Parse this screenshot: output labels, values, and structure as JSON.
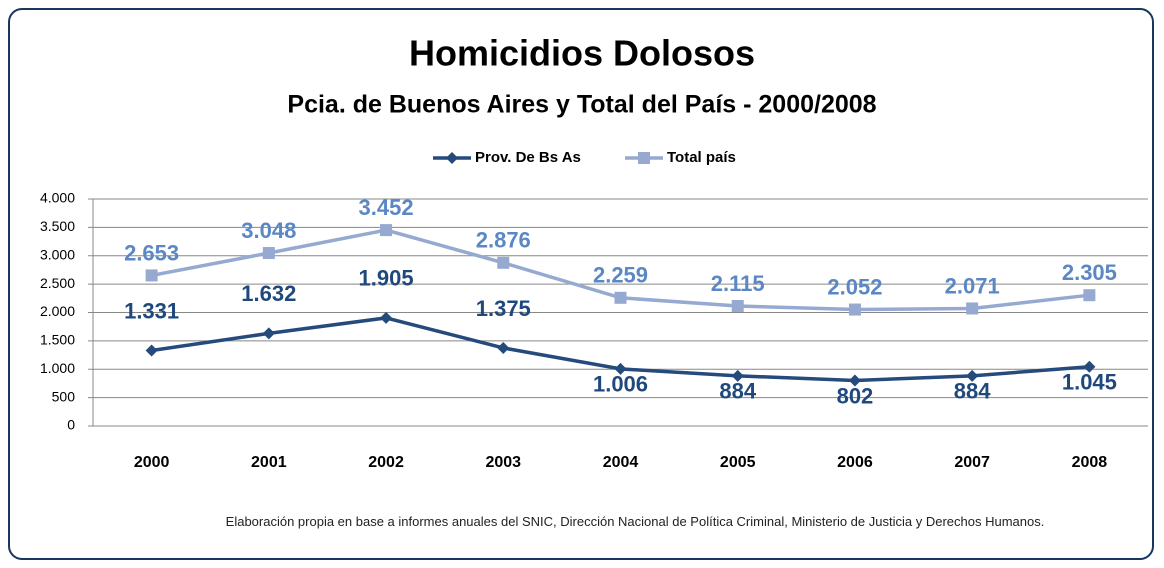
{
  "chart_data": {
    "type": "line",
    "title": "Homicidios Dolosos",
    "subtitle": "Pcia. de Buenos Aires y Total del País - 2000/2008",
    "categories": [
      "2000",
      "2001",
      "2002",
      "2003",
      "2004",
      "2005",
      "2006",
      "2007",
      "2008"
    ],
    "series": [
      {
        "name": "Prov. De Bs As",
        "color": "#254a7c",
        "label_color": "#1f497d",
        "marker": "diamond",
        "values": [
          1331,
          1632,
          1905,
          1375,
          1006,
          884,
          802,
          884,
          1045
        ],
        "value_labels": [
          "1.331",
          "1.632",
          "1.905",
          "1.375",
          "1.006",
          "884",
          "802",
          "884",
          "1.045"
        ]
      },
      {
        "name": "Total país",
        "color": "#95a9d1",
        "label_color": "#5b87c5",
        "marker": "square",
        "values": [
          2653,
          3048,
          3452,
          2876,
          2259,
          2115,
          2052,
          2071,
          2305
        ],
        "value_labels": [
          "2.653",
          "3.048",
          "3.452",
          "2.876",
          "2.259",
          "2.115",
          "2.052",
          "2.071",
          "2.305"
        ]
      }
    ],
    "ylim": [
      0,
      4000
    ],
    "yticks": [
      0,
      500,
      {
        "value": 1000,
        "label": "1.000"
      },
      {
        "value": 1500,
        "label": "1.500"
      },
      {
        "value": 2000,
        "label": "2.000"
      },
      {
        "value": 2500,
        "label": "2.500"
      },
      {
        "value": 3000,
        "label": "3.000"
      },
      {
        "value": 3500,
        "label": "3.500"
      },
      {
        "value": 4000,
        "label": "4.000"
      }
    ],
    "grid": true,
    "legend": "top",
    "note": "Elaboración propia en base a informes anuales del SNIC, Dirección Nacional de Política Criminal, Ministerio de Justicia y Derechos Humanos."
  }
}
